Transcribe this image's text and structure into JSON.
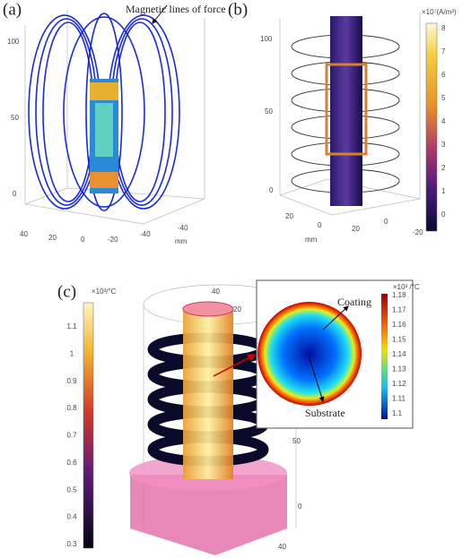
{
  "panel_a": {
    "label": "(a)",
    "annotation": "Magnetic lines of force",
    "z_ticks": [
      "100",
      "50",
      "0"
    ],
    "x_ticks": [
      "40",
      "20",
      "0",
      "-20",
      "-40"
    ],
    "y_ticks": [
      "-40"
    ],
    "unit": "mm"
  },
  "panel_b": {
    "label": "(b)",
    "colorbar": {
      "title": "×10⁷(A/m²)",
      "ticks": [
        "8",
        "7",
        "6",
        "5",
        "4",
        "3",
        "2",
        "1",
        "0"
      ]
    },
    "z_ticks": [
      "100",
      "50",
      "0"
    ],
    "x_ticks": [
      "20",
      "0"
    ],
    "y_ticks": [
      "20",
      "0",
      "-20"
    ],
    "unit": "mm"
  },
  "panel_c": {
    "label": "(c)",
    "colorbar": {
      "title": "×10³/°C",
      "ticks": [
        "1.1",
        "1",
        "0.9",
        "0.8",
        "0.7",
        "0.6",
        "0.5",
        "0.4",
        "0.3"
      ]
    },
    "axis_ticks": [
      "40",
      "20",
      "50",
      "0",
      "40"
    ],
    "inset": {
      "colorbar": {
        "title": "×10³ /°C",
        "ticks": [
          "1.18",
          "1.17",
          "1.16",
          "1.15",
          "1.14",
          "1.13",
          "1.12",
          "1.11",
          "1.1"
        ]
      },
      "labels": [
        "Coating",
        "Substrate"
      ]
    }
  }
}
